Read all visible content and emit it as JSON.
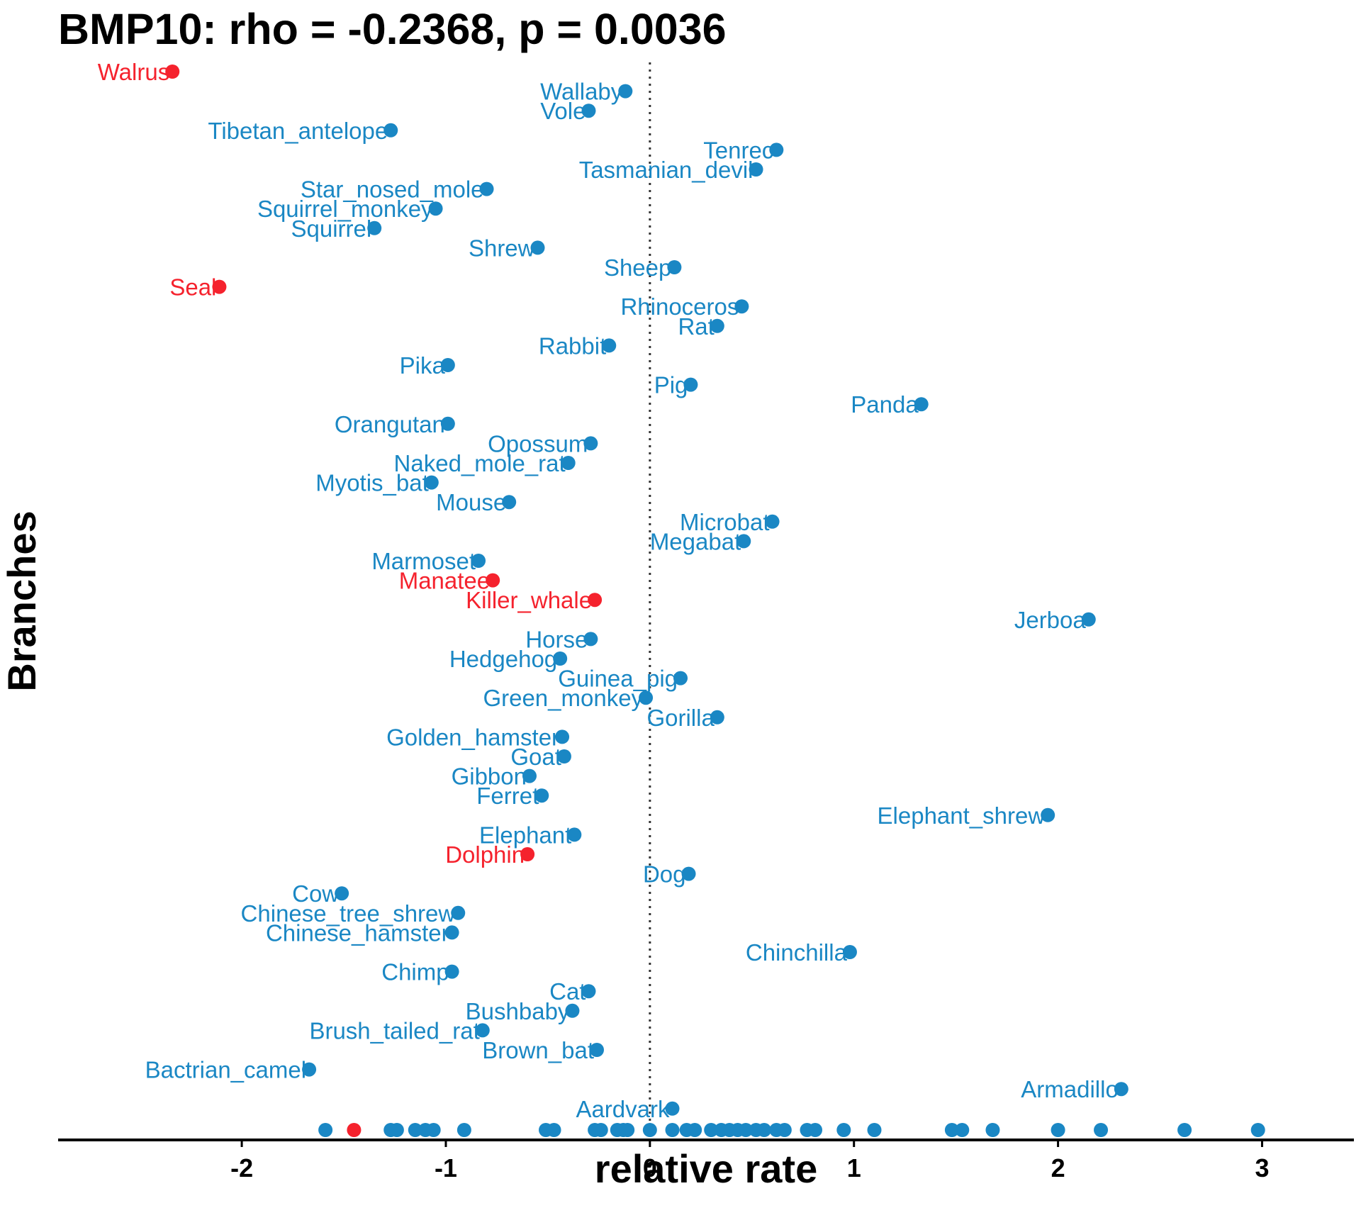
{
  "chart_data": {
    "type": "scatter",
    "title": "BMP10: rho = -0.2368, p = 0.0036",
    "xlabel": "relative rate",
    "ylabel": "Branches",
    "xlim": [
      -2.9,
      3.45
    ],
    "x_ticks": [
      -2,
      -1,
      0,
      1,
      2,
      3
    ],
    "x_tick_labels": [
      "-2",
      "-1",
      "0",
      "1",
      "2",
      "3"
    ],
    "reference_line_x": 0,
    "colors": {
      "default": "#1a87c4",
      "highlight": "#f5222d"
    },
    "points": [
      {
        "label": "Walrus",
        "x": -2.34,
        "group": "highlight"
      },
      {
        "label": "Wallaby",
        "x": -0.12,
        "group": "default"
      },
      {
        "label": "Vole",
        "x": -0.3,
        "group": "default"
      },
      {
        "label": "Tibetan_antelope",
        "x": -1.27,
        "group": "default"
      },
      {
        "label": "Tenrec",
        "x": 0.62,
        "group": "default"
      },
      {
        "label": "Tasmanian_devil",
        "x": 0.52,
        "group": "default"
      },
      {
        "label": "Star_nosed_mole",
        "x": -0.8,
        "group": "default"
      },
      {
        "label": "Squirrel_monkey",
        "x": -1.05,
        "group": "default"
      },
      {
        "label": "Squirrel",
        "x": -1.35,
        "group": "default"
      },
      {
        "label": "Shrew",
        "x": -0.55,
        "group": "default"
      },
      {
        "label": "Sheep",
        "x": 0.12,
        "group": "default"
      },
      {
        "label": "Seal",
        "x": -2.11,
        "group": "highlight"
      },
      {
        "label": "Rhinoceros",
        "x": 0.45,
        "group": "default"
      },
      {
        "label": "Rat",
        "x": 0.33,
        "group": "default"
      },
      {
        "label": "Rabbit",
        "x": -0.2,
        "group": "default"
      },
      {
        "label": "Pika",
        "x": -0.99,
        "group": "default"
      },
      {
        "label": "Pig",
        "x": 0.2,
        "group": "default"
      },
      {
        "label": "Panda",
        "x": 1.33,
        "group": "default"
      },
      {
        "label": "Orangutan",
        "x": -0.99,
        "group": "default"
      },
      {
        "label": "Opossum",
        "x": -0.29,
        "group": "default"
      },
      {
        "label": "Naked_mole_rat",
        "x": -0.4,
        "group": "default"
      },
      {
        "label": "Myotis_bat",
        "x": -1.07,
        "group": "default"
      },
      {
        "label": "Mouse",
        "x": -0.69,
        "group": "default"
      },
      {
        "label": "Microbat",
        "x": 0.6,
        "group": "default"
      },
      {
        "label": "Megabat",
        "x": 0.46,
        "group": "default"
      },
      {
        "label": "Marmoset",
        "x": -0.84,
        "group": "default"
      },
      {
        "label": "Manatee",
        "x": -0.77,
        "group": "highlight"
      },
      {
        "label": "Killer_whale",
        "x": -0.27,
        "group": "highlight"
      },
      {
        "label": "Jerboa",
        "x": 2.15,
        "group": "default"
      },
      {
        "label": "Horse",
        "x": -0.29,
        "group": "default"
      },
      {
        "label": "Hedgehog",
        "x": -0.44,
        "group": "default"
      },
      {
        "label": "Guinea_pig",
        "x": 0.15,
        "group": "default"
      },
      {
        "label": "Green_monkey",
        "x": -0.02,
        "group": "default"
      },
      {
        "label": "Gorilla",
        "x": 0.33,
        "group": "default"
      },
      {
        "label": "Golden_hamster",
        "x": -0.43,
        "group": "default"
      },
      {
        "label": "Goat",
        "x": -0.42,
        "group": "default"
      },
      {
        "label": "Gibbon",
        "x": -0.59,
        "group": "default"
      },
      {
        "label": "Ferret",
        "x": -0.53,
        "group": "default"
      },
      {
        "label": "Elephant_shrew",
        "x": 1.95,
        "group": "default"
      },
      {
        "label": "Elephant",
        "x": -0.37,
        "group": "default"
      },
      {
        "label": "Dolphin",
        "x": -0.6,
        "group": "highlight"
      },
      {
        "label": "Dog",
        "x": 0.19,
        "group": "default"
      },
      {
        "label": "Cow",
        "x": -1.51,
        "group": "default"
      },
      {
        "label": "Chinese_tree_shrew",
        "x": -0.94,
        "group": "default"
      },
      {
        "label": "Chinese_hamster",
        "x": -0.97,
        "group": "default"
      },
      {
        "label": "Chinchilla",
        "x": 0.98,
        "group": "default"
      },
      {
        "label": "Chimp",
        "x": -0.97,
        "group": "default"
      },
      {
        "label": "Cat",
        "x": -0.3,
        "group": "default"
      },
      {
        "label": "Bushbaby",
        "x": -0.38,
        "group": "default"
      },
      {
        "label": "Brush_tailed_rat",
        "x": -0.82,
        "group": "default"
      },
      {
        "label": "Brown_bat",
        "x": -0.26,
        "group": "default"
      },
      {
        "label": "Bactrian_camel",
        "x": -1.67,
        "group": "default"
      },
      {
        "label": "Armadillo",
        "x": 2.31,
        "group": "default"
      },
      {
        "label": "Aardvark",
        "x": 0.11,
        "group": "default"
      }
    ],
    "rug": [
      {
        "x": -1.59,
        "group": "default"
      },
      {
        "x": -1.45,
        "group": "highlight"
      },
      {
        "x": -1.27,
        "group": "default"
      },
      {
        "x": -1.24,
        "group": "default"
      },
      {
        "x": -1.15,
        "group": "default"
      },
      {
        "x": -1.1,
        "group": "default"
      },
      {
        "x": -1.06,
        "group": "default"
      },
      {
        "x": -0.91,
        "group": "default"
      },
      {
        "x": -0.51,
        "group": "default"
      },
      {
        "x": -0.47,
        "group": "default"
      },
      {
        "x": -0.27,
        "group": "default"
      },
      {
        "x": -0.24,
        "group": "default"
      },
      {
        "x": -0.16,
        "group": "default"
      },
      {
        "x": -0.13,
        "group": "default"
      },
      {
        "x": -0.11,
        "group": "default"
      },
      {
        "x": 0.0,
        "group": "default"
      },
      {
        "x": 0.11,
        "group": "default"
      },
      {
        "x": 0.18,
        "group": "default"
      },
      {
        "x": 0.22,
        "group": "default"
      },
      {
        "x": 0.3,
        "group": "default"
      },
      {
        "x": 0.35,
        "group": "default"
      },
      {
        "x": 0.39,
        "group": "default"
      },
      {
        "x": 0.43,
        "group": "default"
      },
      {
        "x": 0.47,
        "group": "default"
      },
      {
        "x": 0.52,
        "group": "default"
      },
      {
        "x": 0.56,
        "group": "default"
      },
      {
        "x": 0.62,
        "group": "default"
      },
      {
        "x": 0.66,
        "group": "default"
      },
      {
        "x": 0.77,
        "group": "default"
      },
      {
        "x": 0.81,
        "group": "default"
      },
      {
        "x": 0.95,
        "group": "default"
      },
      {
        "x": 1.1,
        "group": "default"
      },
      {
        "x": 1.48,
        "group": "default"
      },
      {
        "x": 1.53,
        "group": "default"
      },
      {
        "x": 1.68,
        "group": "default"
      },
      {
        "x": 2.0,
        "group": "default"
      },
      {
        "x": 2.21,
        "group": "default"
      },
      {
        "x": 2.62,
        "group": "default"
      },
      {
        "x": 2.98,
        "group": "default"
      }
    ]
  }
}
